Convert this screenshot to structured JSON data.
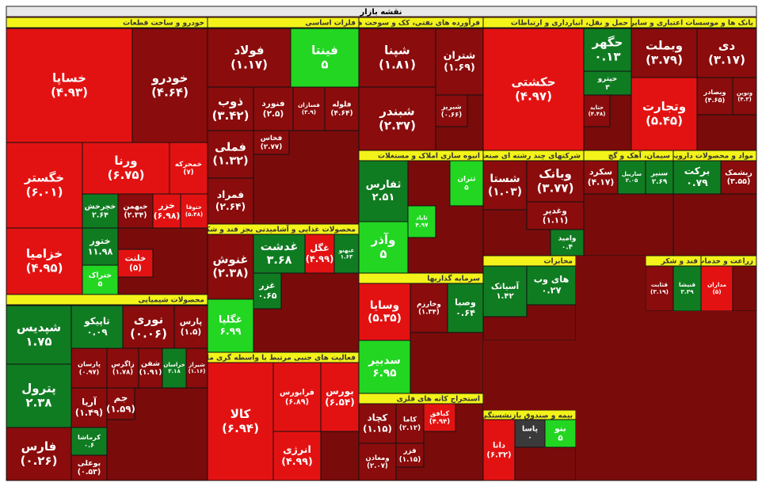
{
  "chart_data": {
    "type": "treemap",
    "title": "نقشه بازار",
    "sectors": [
      {
        "name": "خودرو و ساخت قطعات",
        "tiles": [
          {
            "label": "خساپا",
            "value": -4.93,
            "value_label": "(۴.۹۳)"
          },
          {
            "label": "خودرو",
            "value": -4.64,
            "value_label": "(۴.۶۴)"
          },
          {
            "label": "خگستر",
            "value": -6.01,
            "value_label": "(۶.۰۱)"
          },
          {
            "label": "ورنا",
            "value": -6.75,
            "value_label": "(۶.۷۵)"
          },
          {
            "label": "خمحرکه",
            "value": -7,
            "value_label": "(۷)"
          },
          {
            "label": "خچرخش",
            "value": 2.64,
            "value_label": "۲.۶۴"
          },
          {
            "label": "خبهمن",
            "value": -2.34,
            "value_label": "(۲.۳۴)"
          },
          {
            "label": "خزر",
            "value": -6.98,
            "value_label": "(۶.۹۸)"
          },
          {
            "label": "ختوقا",
            "value": -5.48,
            "value_label": "(۵.۴۸)"
          },
          {
            "label": "خزامیا",
            "value": -4.95,
            "value_label": "(۴.۹۵)"
          },
          {
            "label": "ختور",
            "value": 11.98,
            "value_label": "۱۱.۹۸"
          },
          {
            "label": "ختراک",
            "value": 5,
            "value_label": "۵"
          },
          {
            "label": "خلنت",
            "value": -5,
            "value_label": "(۵)"
          }
        ]
      },
      {
        "name": "محصولات شیمیایی",
        "tiles": [
          {
            "label": "شپدیس",
            "value": 1.75,
            "value_label": "۱.۷۵"
          },
          {
            "label": "تاپیکو",
            "value": 0.09,
            "value_label": "۰.۰۹"
          },
          {
            "label": "نوری",
            "value": -0.06,
            "value_label": "(۰.۰۶)"
          },
          {
            "label": "پارس",
            "value": -1.5,
            "value_label": "(۱.۵)"
          },
          {
            "label": "پترول",
            "value": 2.38,
            "value_label": "۲.۳۸"
          },
          {
            "label": "فارس",
            "value": -0.26,
            "value_label": "(۰.۲۶)"
          },
          {
            "label": "پارسان",
            "value": -0.97,
            "value_label": "(۰.۹۷)"
          },
          {
            "label": "زاگرس",
            "value": -1.78,
            "value_label": "(۱.۷۸)"
          },
          {
            "label": "شفن",
            "value": -1.91,
            "value_label": "(۱.۹۱)"
          },
          {
            "label": "خراسان",
            "value": 3.18,
            "value_label": "۳.۱۸"
          },
          {
            "label": "شیراز",
            "value": -1.16,
            "value_label": "(۱.۱۶)"
          },
          {
            "label": "آریا",
            "value": -1.49,
            "value_label": "(۱.۴۹)"
          },
          {
            "label": "کرماشا",
            "value": 0.6,
            "value_label": "۰.۶"
          },
          {
            "label": "بوعلی",
            "value": -0.53,
            "value_label": "(۰.۵۳)"
          },
          {
            "label": "جم",
            "value": -1.59,
            "value_label": "(۱.۵۹)"
          }
        ]
      },
      {
        "name": "فلزات اساسی",
        "tiles": [
          {
            "label": "فولاد",
            "value": -1.17,
            "value_label": "(۱.۱۷)"
          },
          {
            "label": "فینتا",
            "value": 5,
            "value_label": "۵"
          },
          {
            "label": "ذوب",
            "value": -3.42,
            "value_label": "(۳.۴۲)"
          },
          {
            "label": "فنورد",
            "value": -2.5,
            "value_label": "(۲.۵)"
          },
          {
            "label": "فسازان",
            "value": -3.9,
            "value_label": "(۳.۹)"
          },
          {
            "label": "فلوله",
            "value": -4.64,
            "value_label": "(۴.۶۴)"
          },
          {
            "label": "فملی",
            "value": -1.32,
            "value_label": "(۱.۳۲)"
          },
          {
            "label": "فمراد",
            "value": -2.64,
            "value_label": "(۲.۶۴)"
          },
          {
            "label": "فخاس",
            "value": -2.77,
            "value_label": "(۲.۷۷)"
          }
        ]
      },
      {
        "name": "محصولات غذایی و آشامیدنی بجز قند و شکر",
        "tiles": [
          {
            "label": "غنوش",
            "value": -2.38,
            "value_label": "(۲.۳۸)"
          },
          {
            "label": "غدشت",
            "value": 3.68,
            "value_label": "۳.۶۸"
          },
          {
            "label": "غگل",
            "value": -4.99,
            "value_label": "(۴.۹۹)"
          },
          {
            "label": "غبهنو",
            "value": 1.63,
            "value_label": "۱.۶۳"
          },
          {
            "label": "غگلپا",
            "value": 6.99,
            "value_label": "۶.۹۹"
          },
          {
            "label": "غزر",
            "value": 0.65,
            "value_label": "۰.۶۵"
          }
        ]
      },
      {
        "name": "فعالیت های جنبی مرتبط با واسطه گری مالی",
        "tiles": [
          {
            "label": "کالا",
            "value": -6.94,
            "value_label": "(۶.۹۴)"
          },
          {
            "label": "فرابورس",
            "value": -6.89,
            "value_label": "(۶.۸۹)"
          },
          {
            "label": "بورس",
            "value": -6.54,
            "value_label": "(۶.۵۴)"
          },
          {
            "label": "انرژی",
            "value": -4.99,
            "value_label": "(۴.۹۹)"
          }
        ]
      },
      {
        "name": "فرآورده های نفتی، کک و سوخت هسته ای",
        "tiles": [
          {
            "label": "شپنا",
            "value": -1.81,
            "value_label": "(۱.۸۱)"
          },
          {
            "label": "شتران",
            "value": -1.69,
            "value_label": "(۱.۶۹)"
          },
          {
            "label": "شبندر",
            "value": -2.37,
            "value_label": "(۲.۳۷)"
          },
          {
            "label": "شبریز",
            "value": -0.66,
            "value_label": "(۰.۶۶)"
          }
        ]
      },
      {
        "name": "انبوه سازی املاک و مستغلات",
        "tiles": [
          {
            "label": "ثفارس",
            "value": 2.51,
            "value_label": "۲.۵۱"
          },
          {
            "label": "ثتران",
            "value": 5,
            "value_label": "۵"
          },
          {
            "label": "وآذر",
            "value": 5,
            "value_label": "۵"
          },
          {
            "label": "ثاباد",
            "value": 4.97,
            "value_label": "۴.۹۷"
          }
        ]
      },
      {
        "name": "سرمایه گذاریها",
        "tiles": [
          {
            "label": "وسایا",
            "value": -5.35,
            "value_label": "(۵.۳۵)"
          },
          {
            "label": "وخارزم",
            "value": -1.34,
            "value_label": "(۱.۳۴)"
          },
          {
            "label": "وصبا",
            "value": 0.64,
            "value_label": "۰.۶۴"
          },
          {
            "label": "سدبیر",
            "value": 6.95,
            "value_label": "۶.۹۵"
          }
        ]
      },
      {
        "name": "استخراج کانه های فلزی",
        "tiles": [
          {
            "label": "کچاد",
            "value": -1.15,
            "value_label": "(۱.۱۵)"
          },
          {
            "label": "کاما",
            "value": -2.12,
            "value_label": "(۲.۱۲)"
          },
          {
            "label": "ومعادن",
            "value": -2.07,
            "value_label": "(۲.۰۷)"
          },
          {
            "label": "فزر",
            "value": -1.15,
            "value_label": "(۱.۱۵)"
          },
          {
            "label": "کبافق",
            "value": -4.94,
            "value_label": "(۴.۹۴)"
          }
        ]
      },
      {
        "name": "حمل و نقل، انبارداری و ارتباطات",
        "tiles": [
          {
            "label": "حکشتی",
            "value": -4.97,
            "value_label": "(۴.۹۷)"
          },
          {
            "label": "حگهر",
            "value": 0.13,
            "value_label": "۰.۱۳"
          },
          {
            "label": "حپترو",
            "value": 3,
            "value_label": "۳"
          },
          {
            "label": "حتاید",
            "value": -4.48,
            "value_label": "(۴.۴۸)"
          }
        ]
      },
      {
        "name": "بانک ها و موسسات اعتباری و سایر نهادهای پولی",
        "tiles": [
          {
            "label": "وبملت",
            "value": -3.79,
            "value_label": "(۳.۷۹)"
          },
          {
            "label": "دی",
            "value": -3.17,
            "value_label": "(۳.۱۷)"
          },
          {
            "label": "وتجارت",
            "value": -5.45,
            "value_label": "(۵.۴۵)"
          },
          {
            "label": "وبصادر",
            "value": -4.65,
            "value_label": "(۴.۶۵)"
          },
          {
            "label": "ونوین",
            "value": -4.3,
            "value_label": "(۴.۳)"
          }
        ]
      },
      {
        "name": "شرکتهای چند رشته ای صنعتی",
        "tiles": [
          {
            "label": "شستا",
            "value": -1.03,
            "value_label": "(۱.۰۳)"
          },
          {
            "label": "وبانک",
            "value": -3.77,
            "value_label": "(۳.۷۷)"
          },
          {
            "label": "وغدیر",
            "value": -1.11,
            "value_label": "(۱.۱۱)"
          },
          {
            "label": "وامید",
            "value": 0.4,
            "value_label": "۰.۴"
          }
        ]
      },
      {
        "name": "سیمان، آهک و گچ",
        "tiles": [
          {
            "label": "سکرد",
            "value": -4.17,
            "value_label": "(۴.۱۷)"
          },
          {
            "label": "ساربیل",
            "value": 2.05,
            "value_label": "۲.۰۵"
          },
          {
            "label": "سنیر",
            "value": 2.69,
            "value_label": "۲.۶۹"
          }
        ]
      },
      {
        "name": "مواد و محصولات دارویی",
        "tiles": [
          {
            "label": "برکت",
            "value": 0.79,
            "value_label": "۰.۷۹"
          },
          {
            "label": "ریشمک",
            "value": -3.55,
            "value_label": "(۳.۵۵)"
          }
        ]
      },
      {
        "name": "مخابرات",
        "tiles": [
          {
            "label": "آسیاتک",
            "value": 1.42,
            "value_label": "۱.۴۲"
          },
          {
            "label": "های وب",
            "value": 0.27,
            "value_label": "۰.۲۷"
          }
        ]
      },
      {
        "name": "قند و شکر",
        "tiles": [
          {
            "label": "قثابت",
            "value": -3.19,
            "value_label": "(۳.۱۹)"
          },
          {
            "label": "قنیشا",
            "value": 3.39,
            "value_label": "۳.۳۹"
          }
        ]
      },
      {
        "name": "زراعت و خدمات وابسته",
        "tiles": [
          {
            "label": "مداران",
            "value": -5,
            "value_label": "(۵)"
          }
        ]
      },
      {
        "name": "بیمه و صندوق بازنشستگی",
        "tiles": [
          {
            "label": "دانا",
            "value": -6.32,
            "value_label": "(۶.۳۲)"
          },
          {
            "label": "پاسا",
            "value": 0,
            "value_label": "۰"
          },
          {
            "label": "بنو",
            "value": 5,
            "value_label": "۵"
          }
        ]
      }
    ]
  }
}
